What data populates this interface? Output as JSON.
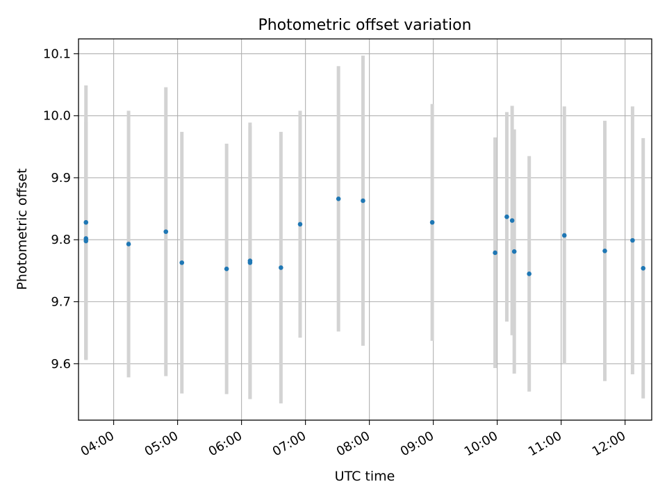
{
  "chart_data": {
    "type": "scatter",
    "title": "Photometric offset variation",
    "xlabel": "UTC time",
    "ylabel": "Photometric offset",
    "xlim": [
      "03:27",
      "12:25"
    ],
    "ylim": [
      9.509,
      10.124
    ],
    "x_ticks": [
      "04:00",
      "05:00",
      "06:00",
      "07:00",
      "08:00",
      "09:00",
      "10:00",
      "11:00",
      "12:00"
    ],
    "y_ticks": [
      9.6,
      9.7,
      9.8,
      9.9,
      10.0,
      10.1
    ],
    "y_tick_labels": [
      "9.6",
      "9.7",
      "9.8",
      "9.9",
      "10.0",
      "10.1"
    ],
    "grid": true,
    "colors": {
      "marker": "#1f77b4",
      "errorbar": "#d3d3d3",
      "grid": "#b0b0b0"
    },
    "points": [
      {
        "x": "03:34",
        "y": 9.828,
        "err": 0.221
      },
      {
        "x": "03:34",
        "y": 9.802,
        "err": 0.195
      },
      {
        "x": "03:34",
        "y": 9.798,
        "err": 0.192
      },
      {
        "x": "04:14",
        "y": 9.793,
        "err": 0.215
      },
      {
        "x": "04:49",
        "y": 9.813,
        "err": 0.233
      },
      {
        "x": "05:04",
        "y": 9.763,
        "err": 0.211
      },
      {
        "x": "05:46",
        "y": 9.753,
        "err": 0.202
      },
      {
        "x": "06:08",
        "y": 9.766,
        "err": 0.223
      },
      {
        "x": "06:08",
        "y": 9.763,
        "err": 0.22
      },
      {
        "x": "06:37",
        "y": 9.755,
        "err": 0.219
      },
      {
        "x": "06:55",
        "y": 9.825,
        "err": 0.183
      },
      {
        "x": "07:31",
        "y": 9.866,
        "err": 0.214
      },
      {
        "x": "07:54",
        "y": 9.863,
        "err": 0.234
      },
      {
        "x": "08:59",
        "y": 9.828,
        "err": 0.191
      },
      {
        "x": "09:58",
        "y": 9.779,
        "err": 0.186
      },
      {
        "x": "10:09",
        "y": 9.837,
        "err": 0.169
      },
      {
        "x": "10:14",
        "y": 9.831,
        "err": 0.185
      },
      {
        "x": "10:16",
        "y": 9.781,
        "err": 0.197
      },
      {
        "x": "10:30",
        "y": 9.745,
        "err": 0.19
      },
      {
        "x": "11:03",
        "y": 9.807,
        "err": 0.208
      },
      {
        "x": "11:41",
        "y": 9.782,
        "err": 0.21
      },
      {
        "x": "12:07",
        "y": 9.799,
        "err": 0.216
      },
      {
        "x": "12:17",
        "y": 9.754,
        "err": 0.21
      }
    ]
  }
}
